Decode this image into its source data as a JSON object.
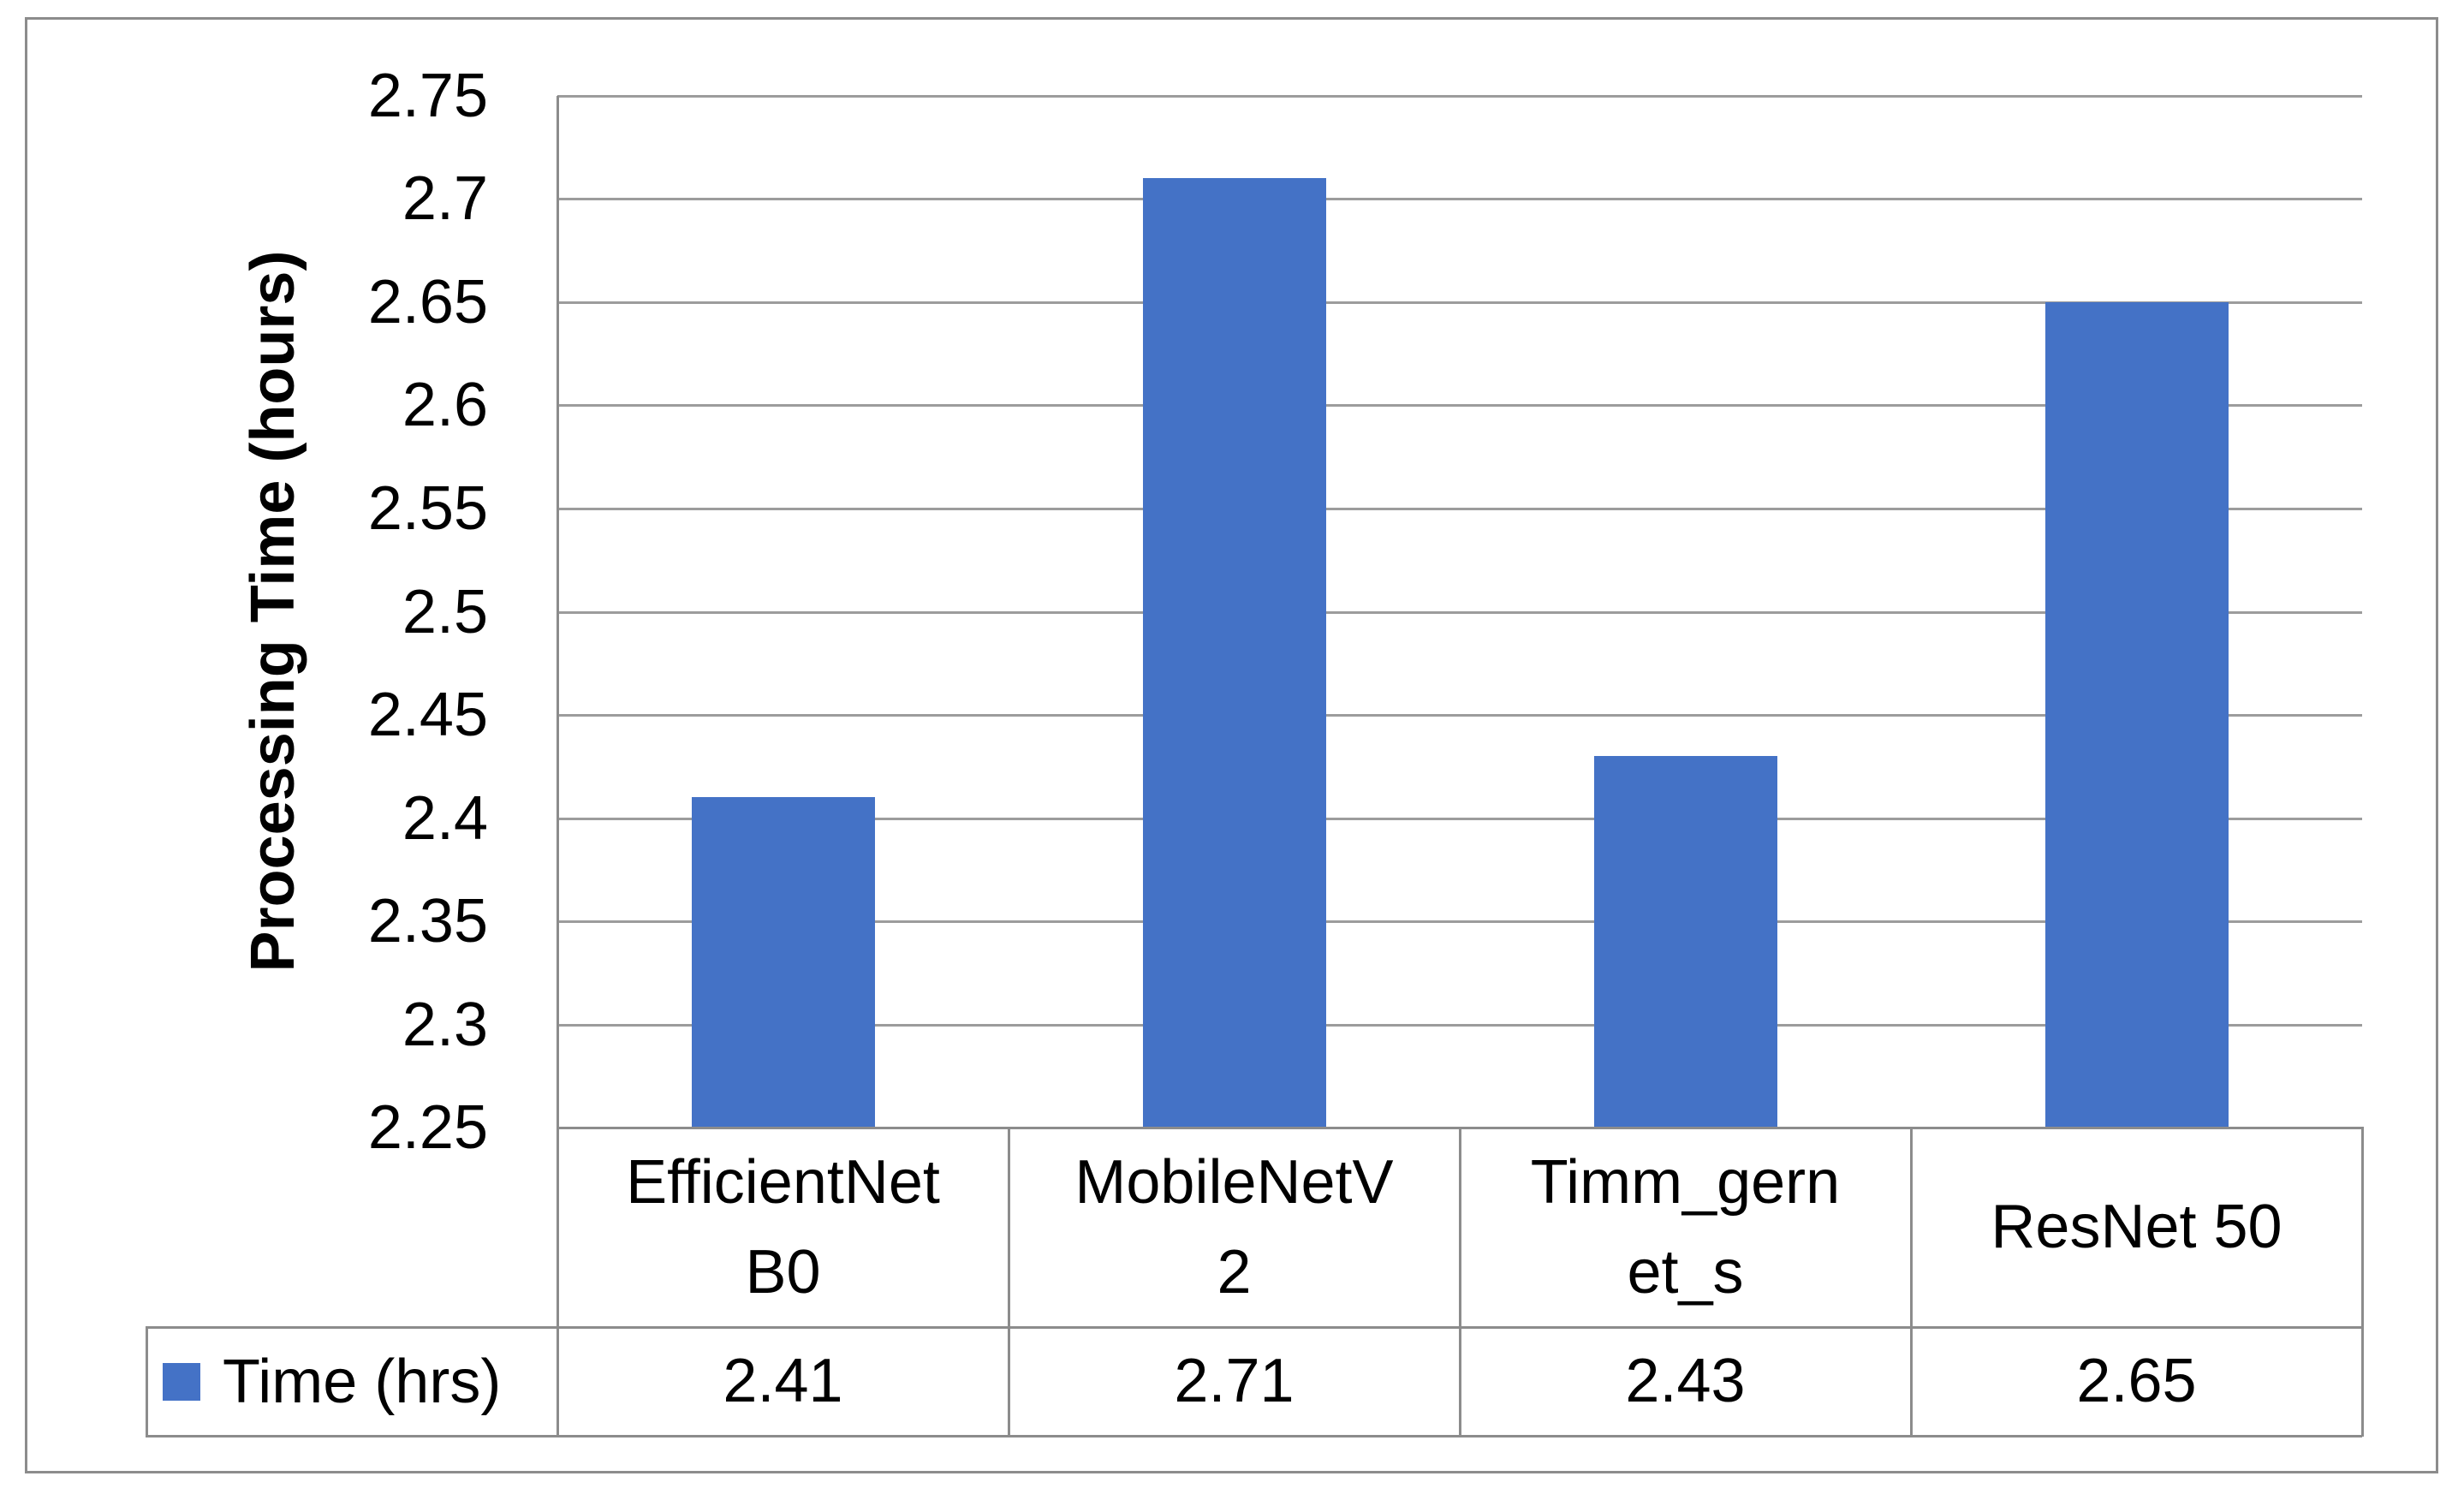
{
  "chart_data": {
    "type": "bar",
    "title": "",
    "categories": [
      "EfficientNet B0",
      "MobileNetV2",
      "Timm_gernet_s",
      "ResNet 50"
    ],
    "category_display_lines": [
      [
        "EfficientNet",
        "B0"
      ],
      [
        "MobileNetV",
        "2"
      ],
      [
        "Timm_gern",
        "et_s"
      ],
      [
        "ResNet 50"
      ]
    ],
    "series": [
      {
        "name": "Time (hrs)",
        "values": [
          2.41,
          2.71,
          2.43,
          2.65
        ],
        "color": "#4472C6"
      }
    ],
    "value_display": [
      "2.41",
      "2.71",
      "2.43",
      "2.65"
    ],
    "xlabel": "",
    "ylabel": "Processing Time (hours)",
    "ylim": [
      2.25,
      2.75
    ],
    "ytick_step": 0.05,
    "ytick_labels": [
      "2.75",
      "2.7",
      "2.65",
      "2.6",
      "2.55",
      "2.5",
      "2.45",
      "2.4",
      "2.35",
      "2.3",
      "2.25"
    ],
    "grid": true,
    "legend_position": "bottom-data-table-left",
    "data_table_shown": true
  }
}
